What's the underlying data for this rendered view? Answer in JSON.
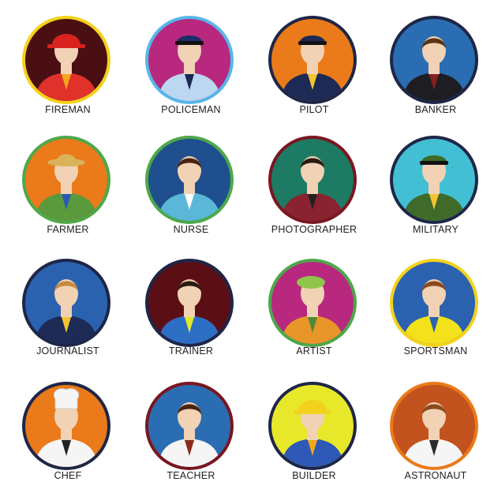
{
  "avatars": [
    {
      "label": "FIREMAN",
      "ring": "#f3d21b",
      "bg": "#4a0f12",
      "outfit": "#e0322b",
      "accent": "#f2a81a",
      "hat": "#d8231e",
      "hat_type": "helmet",
      "skin": "#f1d2b4",
      "hair": "#7a3a16",
      "icon": "fireman-avatar-icon"
    },
    {
      "label": "POLICEMAN",
      "ring": "#57b6e8",
      "bg": "#b8287f",
      "outfit": "#bcd7f0",
      "accent": "#1b2a55",
      "hat": "#1d2d6b",
      "hat_type": "cap",
      "skin": "#f1d2b4",
      "hair": "#c58a3f",
      "icon": "policeman-avatar-icon"
    },
    {
      "label": "PILOT",
      "ring": "#1e2647",
      "bg": "#ea7a1a",
      "outfit": "#1d2a55",
      "accent": "#f4c430",
      "hat": "#1d2a55",
      "hat_type": "cap",
      "skin": "#f1d2b4",
      "hair": "#5a3416",
      "icon": "pilot-avatar-icon"
    },
    {
      "label": "BANKER",
      "ring": "#1e2647",
      "bg": "#2b6db3",
      "outfit": "#1e1e22",
      "accent": "#8a1f1f",
      "hat": "none",
      "hat_type": "none",
      "skin": "#f1d2b4",
      "hair": "#5a3416",
      "icon": "banker-avatar-icon"
    },
    {
      "label": "FARMER",
      "ring": "#4da84a",
      "bg": "#ea7a1a",
      "outfit": "#5a9a3c",
      "accent": "#2d58b5",
      "hat": "#d9b35a",
      "hat_type": "straw",
      "skin": "#f1d2b4",
      "hair": "#5a3416",
      "icon": "farmer-avatar-icon"
    },
    {
      "label": "NURSE",
      "ring": "#4da84a",
      "bg": "#1f4f8f",
      "outfit": "#5bb7d8",
      "accent": "#ffffff",
      "hat": "none",
      "hat_type": "none",
      "skin": "#f1d2b4",
      "hair": "#4a2410",
      "icon": "nurse-avatar-icon"
    },
    {
      "label": "PHOTOGRAPHER",
      "ring": "#7a1620",
      "bg": "#1d7a63",
      "outfit": "#8a2230",
      "accent": "#222222",
      "hat": "none",
      "hat_type": "none",
      "skin": "#f1d2b4",
      "hair": "#2a1a10",
      "icon": "photographer-avatar-icon"
    },
    {
      "label": "MILITARY",
      "ring": "#1e2647",
      "bg": "#42bfd3",
      "outfit": "#3f6a2a",
      "accent": "#f4c430",
      "hat": "#3f6a2a",
      "hat_type": "cap",
      "skin": "#f1d2b4",
      "hair": "#5a3416",
      "icon": "military-avatar-icon"
    },
    {
      "label": "JOURNALIST",
      "ring": "#1e2647",
      "bg": "#2b62b0",
      "outfit": "#1d2a55",
      "accent": "#f4c430",
      "hat": "none",
      "hat_type": "none",
      "skin": "#f1d2b4",
      "hair": "#c58a3f",
      "icon": "journalist-avatar-icon"
    },
    {
      "label": "TRAINER",
      "ring": "#1e2647",
      "bg": "#5b0f14",
      "outfit": "#2d6ec5",
      "accent": "#e3e82a",
      "hat": "none",
      "hat_type": "none",
      "skin": "#f1d2b4",
      "hair": "#2a1a10",
      "icon": "trainer-avatar-icon"
    },
    {
      "label": "ARTIST",
      "ring": "#4da84a",
      "bg": "#b8287f",
      "outfit": "#e8962a",
      "accent": "#4f8a3a",
      "hat": "#8fc54a",
      "hat_type": "beret",
      "skin": "#f1d2b4",
      "hair": "#c58a3f",
      "icon": "artist-avatar-icon"
    },
    {
      "label": "SPORTSMAN",
      "ring": "#f3d21b",
      "bg": "#2b62b0",
      "outfit": "#f3e21b",
      "accent": "#2b62b0",
      "hat": "none",
      "hat_type": "none",
      "skin": "#f1d2b4",
      "hair": "#8a4a1c",
      "icon": "sportsman-avatar-icon"
    },
    {
      "label": "CHEF",
      "ring": "#1e2647",
      "bg": "#ea7a1a",
      "outfit": "#f5f5f5",
      "accent": "#222222",
      "hat": "#f5f5f5",
      "hat_type": "toque",
      "skin": "#f1d2b4",
      "hair": "#5a3416",
      "icon": "chef-avatar-icon"
    },
    {
      "label": "TEACHER",
      "ring": "#7a1620",
      "bg": "#2b6db3",
      "outfit": "#f5f5f5",
      "accent": "#8a2a1a",
      "hat": "none",
      "hat_type": "none",
      "skin": "#f1d2b4",
      "hair": "#4a2410",
      "icon": "teacher-avatar-icon"
    },
    {
      "label": "BUILDER",
      "ring": "#1e2647",
      "bg": "#e8e82a",
      "outfit": "#2d58b5",
      "accent": "#f0a81a",
      "hat": "#f3d21b",
      "hat_type": "hardhat",
      "skin": "#f1d2b4",
      "hair": "#5a3416",
      "icon": "builder-avatar-icon"
    },
    {
      "label": "ASTRONAUT",
      "ring": "#ea7a1a",
      "bg": "#c2521e",
      "outfit": "#f5f5f5",
      "accent": "#2a2a2a",
      "hat": "none",
      "hat_type": "none",
      "skin": "#f1d2b4",
      "hair": "#8a4a1c",
      "icon": "astronaut-avatar-icon"
    }
  ]
}
